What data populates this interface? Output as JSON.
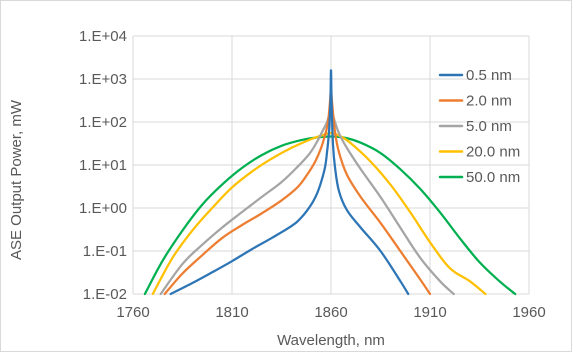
{
  "chart_data": {
    "type": "line",
    "title": "",
    "xlabel": "Wavelength, nm",
    "ylabel": "ASE Output Power, mW",
    "x_scale": "linear",
    "y_scale": "log",
    "xlim": [
      1760,
      1960
    ],
    "ylim": [
      0.01,
      10000
    ],
    "x_ticks": [
      1760,
      1810,
      1860,
      1910,
      1960
    ],
    "x_tick_labels": [
      "1760",
      "1810",
      "1860",
      "1910",
      "1960"
    ],
    "y_ticks": [
      0.01,
      0.1,
      1,
      10,
      100,
      1000,
      10000
    ],
    "y_tick_labels": [
      "1.E-02",
      "1.E-01",
      "1.E+00",
      "1.E+01",
      "1.E+02",
      "1.E+03",
      "1.E+04"
    ],
    "grid": {
      "x": true,
      "y": true
    },
    "legend_position": "right",
    "colors": {
      "grid": "#d9d9d9",
      "frame": "#d9d9d9",
      "text": "#595959"
    },
    "series": [
      {
        "name": "0.5 nm",
        "color": "#2E75B6",
        "points": [
          [
            1779,
            0.01
          ],
          [
            1790,
            0.018
          ],
          [
            1800,
            0.032
          ],
          [
            1810,
            0.058
          ],
          [
            1820,
            0.11
          ],
          [
            1830,
            0.2
          ],
          [
            1840,
            0.38
          ],
          [
            1845,
            0.6
          ],
          [
            1850,
            1.2
          ],
          [
            1853,
            2.2
          ],
          [
            1855,
            4
          ],
          [
            1857,
            9
          ],
          [
            1858,
            20
          ],
          [
            1859,
            60
          ],
          [
            1859.7,
            300
          ],
          [
            1860,
            1600
          ],
          [
            1860.3,
            300
          ],
          [
            1861,
            30
          ],
          [
            1862,
            9
          ],
          [
            1864,
            2.5
          ],
          [
            1868,
            0.9
          ],
          [
            1875,
            0.35
          ],
          [
            1885,
            0.1
          ],
          [
            1895,
            0.02
          ],
          [
            1899,
            0.01
          ]
        ]
      },
      {
        "name": "2.0 nm",
        "color": "#ED7D31",
        "points": [
          [
            1776,
            0.01
          ],
          [
            1785,
            0.03
          ],
          [
            1795,
            0.08
          ],
          [
            1805,
            0.2
          ],
          [
            1815,
            0.4
          ],
          [
            1825,
            0.75
          ],
          [
            1835,
            1.5
          ],
          [
            1843,
            3
          ],
          [
            1848,
            6
          ],
          [
            1852,
            12
          ],
          [
            1855,
            25
          ],
          [
            1857,
            50
          ],
          [
            1858.5,
            100
          ],
          [
            1859.5,
            300
          ],
          [
            1860,
            600
          ],
          [
            1860.5,
            300
          ],
          [
            1862,
            60
          ],
          [
            1864,
            20
          ],
          [
            1868,
            6
          ],
          [
            1875,
            1.8
          ],
          [
            1885,
            0.45
          ],
          [
            1895,
            0.1
          ],
          [
            1905,
            0.022
          ],
          [
            1910,
            0.01
          ]
        ]
      },
      {
        "name": "5.0 nm",
        "color": "#A5A5A5",
        "points": [
          [
            1774,
            0.01
          ],
          [
            1785,
            0.05
          ],
          [
            1795,
            0.14
          ],
          [
            1805,
            0.35
          ],
          [
            1815,
            0.8
          ],
          [
            1825,
            1.8
          ],
          [
            1835,
            4
          ],
          [
            1843,
            9
          ],
          [
            1849,
            18
          ],
          [
            1853,
            35
          ],
          [
            1856,
            65
          ],
          [
            1858,
            100
          ],
          [
            1860,
            180
          ],
          [
            1862,
            100
          ],
          [
            1864,
            55
          ],
          [
            1868,
            25
          ],
          [
            1875,
            8
          ],
          [
            1885,
            1.8
          ],
          [
            1895,
            0.35
          ],
          [
            1905,
            0.07
          ],
          [
            1915,
            0.02
          ],
          [
            1922,
            0.01
          ]
        ]
      },
      {
        "name": "20.0 nm",
        "color": "#FFC000",
        "points": [
          [
            1770,
            0.01
          ],
          [
            1780,
            0.07
          ],
          [
            1790,
            0.3
          ],
          [
            1800,
            1
          ],
          [
            1810,
            3
          ],
          [
            1820,
            7
          ],
          [
            1830,
            14
          ],
          [
            1840,
            25
          ],
          [
            1850,
            40
          ],
          [
            1855,
            48
          ],
          [
            1860,
            55
          ],
          [
            1865,
            46
          ],
          [
            1870,
            32
          ],
          [
            1880,
            12
          ],
          [
            1890,
            3.5
          ],
          [
            1900,
            0.8
          ],
          [
            1910,
            0.16
          ],
          [
            1920,
            0.04
          ],
          [
            1930,
            0.02
          ],
          [
            1938,
            0.01
          ]
        ]
      },
      {
        "name": "50.0 nm",
        "color": "#00B050",
        "points": [
          [
            1766,
            0.01
          ],
          [
            1775,
            0.06
          ],
          [
            1785,
            0.3
          ],
          [
            1795,
            1.2
          ],
          [
            1805,
            3.5
          ],
          [
            1815,
            8.5
          ],
          [
            1825,
            17
          ],
          [
            1835,
            28
          ],
          [
            1845,
            38
          ],
          [
            1853,
            44
          ],
          [
            1860,
            46
          ],
          [
            1867,
            43
          ],
          [
            1875,
            33
          ],
          [
            1885,
            19
          ],
          [
            1895,
            8
          ],
          [
            1905,
            2.8
          ],
          [
            1915,
            0.8
          ],
          [
            1925,
            0.2
          ],
          [
            1935,
            0.055
          ],
          [
            1945,
            0.02
          ],
          [
            1953,
            0.01
          ]
        ]
      }
    ]
  }
}
